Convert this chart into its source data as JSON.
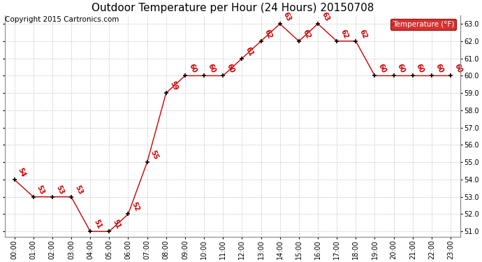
{
  "title": "Outdoor Temperature per Hour (24 Hours) 20150708",
  "copyright": "Copyright 2015 Cartronics.com",
  "legend_label": "Temperature (°F)",
  "hours": [
    "00:00",
    "01:00",
    "02:00",
    "03:00",
    "04:00",
    "05:00",
    "06:00",
    "07:00",
    "08:00",
    "09:00",
    "10:00",
    "11:00",
    "12:00",
    "13:00",
    "14:00",
    "15:00",
    "16:00",
    "17:00",
    "18:00",
    "19:00",
    "20:00",
    "21:00",
    "22:00",
    "23:00"
  ],
  "temps": [
    54,
    53,
    53,
    53,
    51,
    51,
    52,
    55,
    59,
    60,
    60,
    60,
    61,
    62,
    63,
    62,
    63,
    62,
    62,
    60,
    60,
    60,
    60,
    60
  ],
  "ylim_min": 50.7,
  "ylim_max": 63.5,
  "line_color": "#cc0000",
  "marker_color": "#000000",
  "label_color": "#cc0000",
  "background_color": "#ffffff",
  "grid_color": "#bbbbbb",
  "title_fontsize": 11,
  "copyright_fontsize": 7.5,
  "label_fontsize": 7,
  "tick_fontsize": 7,
  "legend_bg": "#cc0000",
  "legend_text": "#ffffff",
  "legend_fontsize": 7.5
}
